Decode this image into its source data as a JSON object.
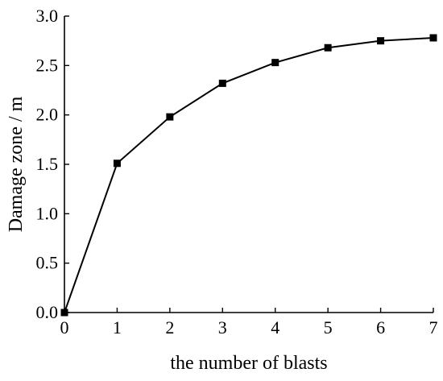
{
  "chart_data": {
    "type": "line",
    "title": "",
    "xlabel": "the number of blasts",
    "ylabel": "Damage zone / m",
    "xlim": [
      0,
      7
    ],
    "ylim": [
      0,
      3.0
    ],
    "xticks": [
      "0",
      "1",
      "2",
      "3",
      "4",
      "5",
      "6",
      "7"
    ],
    "yticks": [
      "0.0",
      "0.5",
      "1.0",
      "1.5",
      "2.0",
      "2.5",
      "3.0"
    ],
    "grid": false,
    "series": [
      {
        "x": [
          0,
          1,
          2,
          3,
          4,
          5,
          6,
          7
        ],
        "values": [
          0.0,
          1.51,
          1.98,
          2.32,
          2.53,
          2.68,
          2.75,
          2.78
        ],
        "marker": "square",
        "color": "#000000"
      }
    ]
  }
}
